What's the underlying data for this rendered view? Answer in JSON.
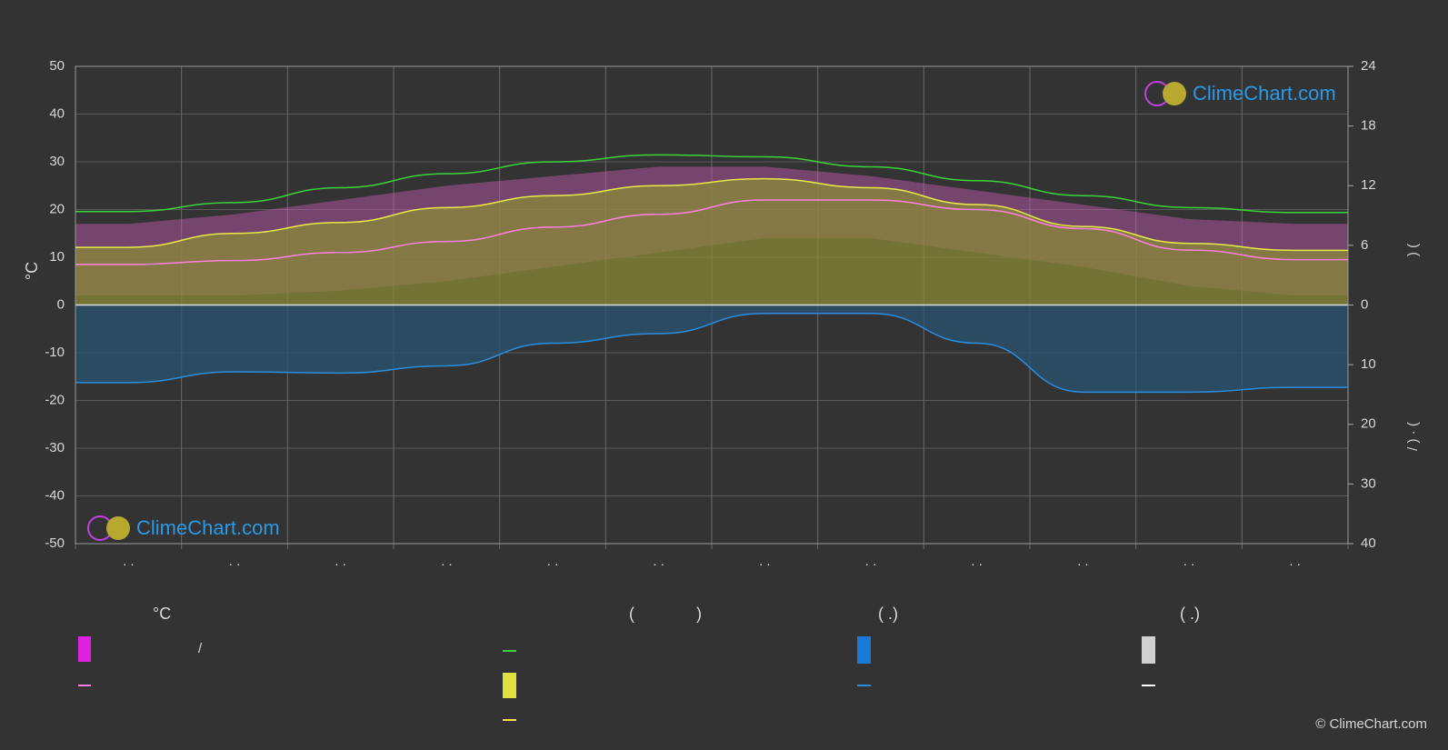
{
  "chart_data": {
    "type": "line",
    "y_label": "°C",
    "y2_label": ")          (",
    "y3_label": "/      ) · (",
    "categories": [
      ". .",
      ". .",
      ". .",
      ". .",
      ". .",
      ". .",
      ". .",
      ". .",
      ". .",
      ". .",
      ". .",
      ". ."
    ],
    "ylim": [
      -50,
      50
    ],
    "yticks": [
      -50,
      -40,
      -30,
      -20,
      -10,
      0,
      10,
      20,
      30,
      40,
      50
    ],
    "y2lim": [
      0,
      24
    ],
    "y2ticks": [
      0,
      6,
      12,
      18,
      24
    ],
    "y3lim": [
      0,
      40
    ],
    "y3ticks": [
      10,
      20,
      30,
      40
    ],
    "grid": true,
    "temp_band": {
      "color": "#c85ab4",
      "max": [
        17,
        19,
        22,
        25,
        27,
        29,
        29,
        27,
        24,
        21,
        18,
        17
      ],
      "min": [
        2,
        2,
        3,
        5,
        8,
        11,
        14,
        14,
        11,
        8,
        4,
        2
      ]
    },
    "series": [
      {
        "color": "#ff80e0",
        "values": [
          8.5,
          9.3,
          11,
          13.3,
          16.3,
          19,
          22,
          22,
          20,
          16,
          11.5,
          9.5
        ]
      },
      {
        "color": "#e8e84a",
        "axis": "y2",
        "fill": "#8a8a38",
        "values": [
          5.8,
          7.2,
          8.3,
          9.8,
          11.0,
          12.0,
          12.7,
          11.8,
          10.1,
          7.9,
          6.2,
          5.5
        ]
      },
      {
        "color": "#3ad43a",
        "axis": "y2",
        "values": [
          9.4,
          10.3,
          11.8,
          13.2,
          14.4,
          15.1,
          14.9,
          13.9,
          12.5,
          11.0,
          9.8,
          9.3
        ]
      },
      {
        "color": "#2a8ee0",
        "axis": "y3",
        "fill": "#2a5474",
        "values": [
          13.0,
          11.2,
          11.4,
          10.2,
          6.4,
          4.8,
          1.4,
          1.4,
          6.4,
          14.6,
          14.6,
          13.8
        ]
      }
    ]
  },
  "legend": {
    "t1": "°C",
    "t2": "/",
    "t3": "(",
    "t4": ")",
    "t5": "(   .)",
    "t6": "(   .)"
  },
  "watermark": "ClimeChart.com",
  "copyright": "© ClimeChart.com"
}
